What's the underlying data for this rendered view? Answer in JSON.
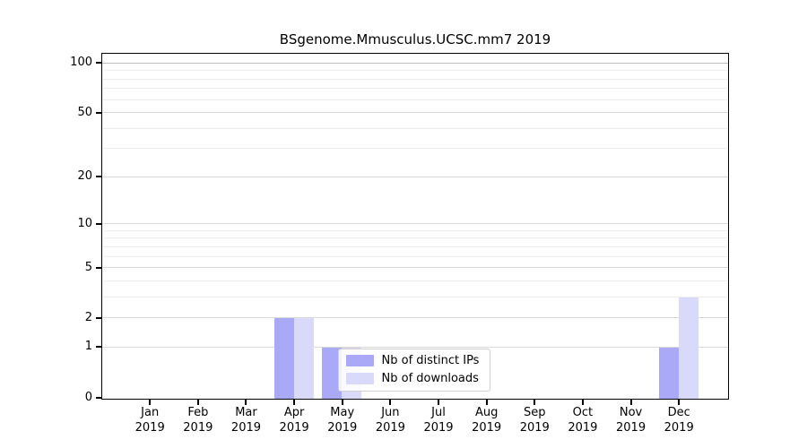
{
  "chart_data": {
    "type": "bar",
    "title": "BSgenome.Mmusculus.UCSC.mm7 2019",
    "categories": [
      "Jan",
      "Feb",
      "Mar",
      "Apr",
      "May",
      "Jun",
      "Jul",
      "Aug",
      "Sep",
      "Oct",
      "Nov",
      "Dec"
    ],
    "category_year": "2019",
    "series": [
      {
        "name": "Nb of distinct IPs",
        "color": "#a9a9f8",
        "values": [
          0,
          0,
          0,
          2,
          1,
          0,
          0,
          0,
          0,
          0,
          0,
          1
        ]
      },
      {
        "name": "Nb of downloads",
        "color": "#d9d9fa",
        "values": [
          0,
          0,
          0,
          2,
          1,
          0,
          0,
          0,
          0,
          0,
          0,
          3
        ]
      }
    ],
    "xlabel": "",
    "ylabel": "",
    "y_axis": {
      "scale": "log1p",
      "tick_values": [
        0,
        1,
        2,
        5,
        10,
        20,
        50,
        100
      ],
      "tick_labels": [
        "0",
        "1",
        "2",
        "5",
        "10",
        "20",
        "50",
        "100"
      ],
      "minor_gridline_values": [
        3,
        4,
        6,
        7,
        8,
        9,
        30,
        40,
        60,
        70,
        80,
        90
      ]
    },
    "grid": true,
    "legend": {
      "entries": [
        "Nb of distinct IPs",
        "Nb of downloads"
      ],
      "position": "inside-bottom-center"
    },
    "colors": {
      "distinct_ips_bar": "#a9a9f8",
      "downloads_bar": "#d9d9fa",
      "gridline_top": "#bdbdbd",
      "gridline_major": "#d9d9d9",
      "gridline_minor": "#ededed",
      "axis": "#000000",
      "background": "#ffffff"
    }
  }
}
